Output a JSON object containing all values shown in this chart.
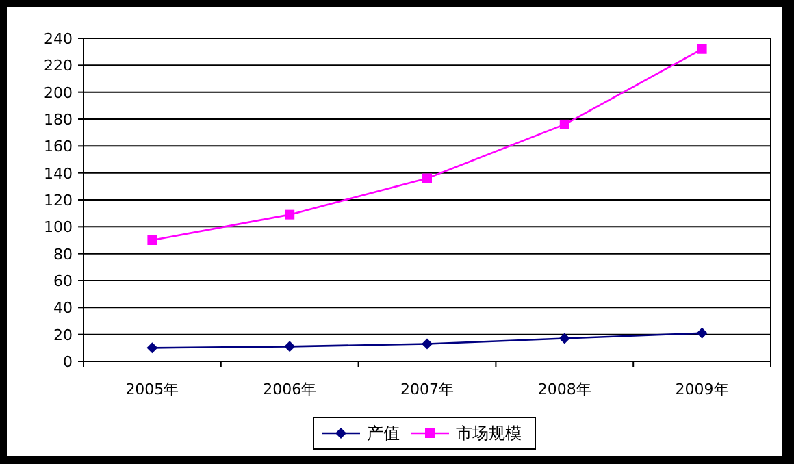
{
  "chart_data": {
    "type": "line",
    "categories": [
      "2005年",
      "2006年",
      "2007年",
      "2008年",
      "2009年"
    ],
    "series": [
      {
        "name": "产值",
        "color": "#000080",
        "marker": "diamond",
        "values": [
          10,
          11,
          13,
          17,
          21
        ]
      },
      {
        "name": "市场规模",
        "color": "#ff00ff",
        "marker": "square",
        "values": [
          90,
          109,
          136,
          176,
          232
        ]
      }
    ],
    "ylim": [
      0,
      240
    ],
    "yticks": [
      0,
      20,
      40,
      60,
      80,
      100,
      120,
      140,
      160,
      180,
      200,
      220,
      240
    ],
    "grid": "y",
    "legend": "bottom"
  }
}
